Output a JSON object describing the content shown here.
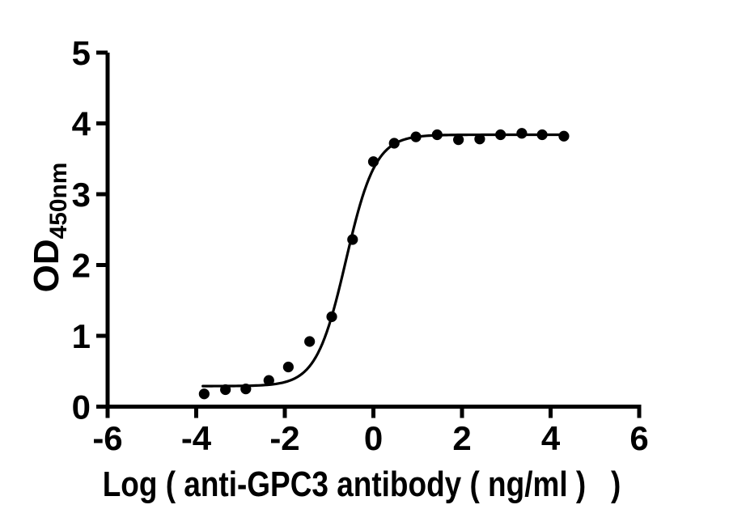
{
  "figure": {
    "background_color": "#ffffff",
    "ink_color": "#000000"
  },
  "chart_data": {
    "type": "scatter",
    "title": "",
    "xlabel": "Log ( anti-GPC3 antibody ( ng/ml )   )",
    "ylabel": "OD",
    "ylabel_subscript": "450nm",
    "xlim": [
      -6,
      6
    ],
    "ylim": [
      0,
      5
    ],
    "x_tick_values": [
      -6,
      -4,
      -2,
      0,
      2,
      4,
      6
    ],
    "x_tick_labels": [
      "-6",
      "-4",
      "-2",
      "0",
      "2",
      "4",
      "6"
    ],
    "y_tick_values": [
      0,
      1,
      2,
      3,
      4,
      5
    ],
    "y_tick_labels": [
      "0",
      "1",
      "2",
      "3",
      "4",
      "5"
    ],
    "grid": false,
    "legend": "none",
    "points": [
      {
        "x": -3.82,
        "y": 0.18
      },
      {
        "x": -3.34,
        "y": 0.24
      },
      {
        "x": -2.88,
        "y": 0.25
      },
      {
        "x": -2.36,
        "y": 0.37
      },
      {
        "x": -1.92,
        "y": 0.56
      },
      {
        "x": -1.44,
        "y": 0.92
      },
      {
        "x": -0.94,
        "y": 1.27
      },
      {
        "x": -0.47,
        "y": 2.36
      },
      {
        "x": 0.0,
        "y": 3.46
      },
      {
        "x": 0.47,
        "y": 3.72
      },
      {
        "x": 0.96,
        "y": 3.81
      },
      {
        "x": 1.44,
        "y": 3.84
      },
      {
        "x": 1.92,
        "y": 3.77
      },
      {
        "x": 2.4,
        "y": 3.78
      },
      {
        "x": 2.87,
        "y": 3.84
      },
      {
        "x": 3.35,
        "y": 3.86
      },
      {
        "x": 3.81,
        "y": 3.84
      },
      {
        "x": 4.3,
        "y": 3.82
      }
    ],
    "fit_curve": {
      "model": "four_parameter_logistic",
      "bottom": 0.29,
      "top": 3.84,
      "log_ec50": -0.62,
      "hill_slope": 1.3,
      "x_start": -3.85,
      "x_end": 4.3
    }
  }
}
